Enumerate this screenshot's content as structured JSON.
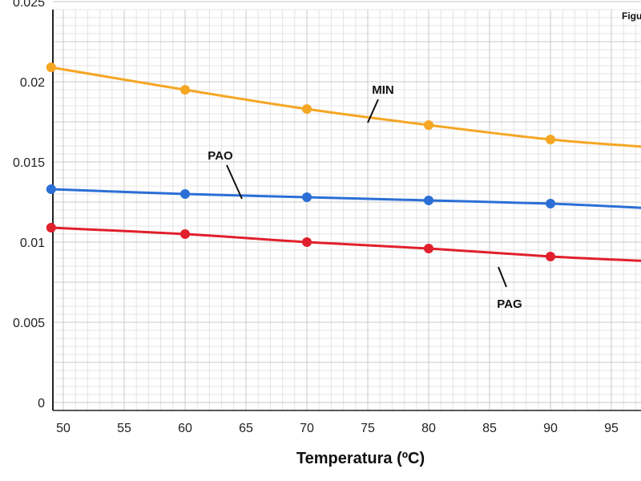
{
  "chart_data": {
    "type": "line",
    "figure_label": "Figu",
    "xlabel": "Temperatura (ºC)",
    "ylabel": "",
    "xlim": [
      49,
      98.5
    ],
    "ylim": [
      0,
      0.025
    ],
    "x_ticks": [
      "50",
      "55",
      "60",
      "65",
      "70",
      "75",
      "80",
      "85",
      "90",
      "95"
    ],
    "y_ticks": [
      "0",
      "0.005",
      "0.01",
      "0.015",
      "0.02",
      "0.025"
    ],
    "grid": true,
    "series": [
      {
        "name": "MIN",
        "color": "#f5a623",
        "x": [
          49,
          60,
          70,
          80,
          90,
          98.5
        ],
        "y": [
          0.0209,
          0.0195,
          0.0183,
          0.0173,
          0.0164,
          0.0159
        ],
        "markers": [
          true,
          true,
          true,
          true,
          true,
          false
        ]
      },
      {
        "name": "PAO",
        "color": "#2b6fd6",
        "x": [
          49,
          60,
          70,
          80,
          90,
          98.5
        ],
        "y": [
          0.0133,
          0.013,
          0.0128,
          0.0126,
          0.0124,
          0.0121
        ],
        "markers": [
          true,
          true,
          true,
          true,
          true,
          false
        ]
      },
      {
        "name": "PAG",
        "color": "#e0202c",
        "x": [
          49,
          60,
          70,
          80,
          90,
          98.5
        ],
        "y": [
          0.0109,
          0.0105,
          0.01,
          0.0096,
          0.0091,
          0.0088
        ],
        "markers": [
          true,
          true,
          true,
          true,
          true,
          false
        ]
      }
    ]
  }
}
